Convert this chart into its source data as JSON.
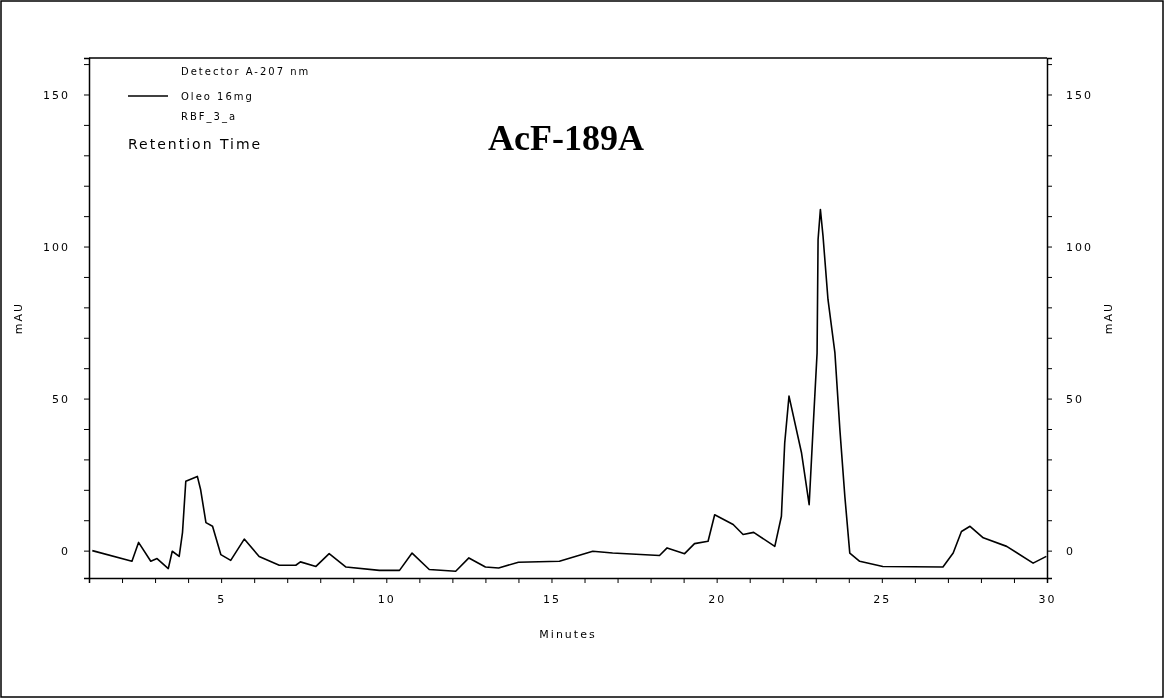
{
  "chart_data": {
    "type": "line",
    "title": "AcF-189A",
    "xlabel": "Minutes",
    "ylabel": "mAU",
    "y2label": "mAU",
    "legend": "top left",
    "grid": false,
    "marker": "none",
    "line_style": "solid",
    "annotations": [
      "Detector A-207 nm",
      "RBF_3_a",
      "Retention Time"
    ],
    "xlim": [
      1,
      30
    ],
    "xticks": [
      {
        "value": 1,
        "label": null
      },
      {
        "value": 2,
        "label": null
      },
      {
        "value": 3,
        "label": null
      },
      {
        "value": 4,
        "label": null
      },
      5,
      {
        "value": 6,
        "label": null
      },
      {
        "value": 7,
        "label": null
      },
      {
        "value": 8,
        "label": null
      },
      {
        "value": 9,
        "label": null
      },
      10,
      {
        "value": 11,
        "label": null
      },
      {
        "value": 12,
        "label": null
      },
      {
        "value": 13,
        "label": null
      },
      {
        "value": 14,
        "label": null
      },
      15,
      {
        "value": 16,
        "label": null
      },
      {
        "value": 17,
        "label": null
      },
      {
        "value": 18,
        "label": null
      },
      {
        "value": 19,
        "label": null
      },
      20,
      {
        "value": 21,
        "label": null
      },
      {
        "value": 22,
        "label": null
      },
      {
        "value": 23,
        "label": null
      },
      {
        "value": 24,
        "label": null
      },
      25,
      {
        "value": 26,
        "label": null
      },
      {
        "value": 27,
        "label": null
      },
      {
        "value": 28,
        "label": null
      },
      {
        "value": 29,
        "label": null
      },
      30
    ],
    "ylim": [
      -9,
      162
    ],
    "yticks": [
      0,
      {
        "value": 10,
        "label": null
      },
      {
        "value": 20,
        "label": null
      },
      {
        "value": 30,
        "label": null
      },
      {
        "value": 40,
        "label": null
      },
      50,
      {
        "value": 60,
        "label": null
      },
      {
        "value": 70,
        "label": null
      },
      {
        "value": 80,
        "label": null
      },
      {
        "value": 90,
        "label": null
      },
      100,
      {
        "value": 110,
        "label": null
      },
      {
        "value": 120,
        "label": null
      },
      {
        "value": 130,
        "label": null
      },
      {
        "value": 140,
        "label": null
      },
      150,
      {
        "value": 160,
        "label": null
      }
    ],
    "y2lim": [
      -9,
      162
    ],
    "y2ticks": [
      0,
      {
        "value": 10,
        "label": null
      },
      {
        "value": 20,
        "label": null
      },
      {
        "value": 30,
        "label": null
      },
      {
        "value": 40,
        "label": null
      },
      50,
      {
        "value": 60,
        "label": null
      },
      {
        "value": 70,
        "label": null
      },
      {
        "value": 80,
        "label": null
      },
      {
        "value": 90,
        "label": null
      },
      100,
      {
        "value": 110,
        "label": null
      },
      {
        "value": 120,
        "label": null
      },
      {
        "value": 130,
        "label": null
      },
      {
        "value": 140,
        "label": null
      },
      150,
      {
        "value": 160,
        "label": null
      }
    ],
    "series": [
      {
        "name": "Oleo 16mg",
        "color": "#000000",
        "x": [
          1.1,
          2.3,
          2.5,
          2.87,
          3.06,
          3.4,
          3.52,
          3.73,
          3.83,
          3.93,
          4.28,
          4.38,
          4.54,
          4.74,
          4.99,
          5.29,
          5.7,
          6.15,
          6.76,
          7.26,
          7.4,
          7.87,
          8.27,
          8.78,
          9.79,
          10.4,
          10.78,
          11.3,
          12.1,
          12.5,
          13.0,
          13.4,
          14.0,
          15.24,
          16.25,
          16.85,
          18.27,
          18.5,
          19.03,
          19.33,
          19.74,
          19.94,
          20.5,
          20.8,
          21.12,
          21.76,
          21.96,
          22.06,
          22.19,
          22.57,
          22.8,
          22.92,
          23.04,
          23.07,
          23.14,
          23.22,
          23.37,
          23.58,
          23.73,
          23.88,
          24.03,
          24.33,
          25.03,
          26.85,
          27.16,
          27.41,
          27.67,
          28.07,
          28.78,
          29.58,
          29.98
        ],
        "values": [
          0,
          -3.5,
          2.7,
          -3.5,
          -2.6,
          -5.9,
          -0.2,
          -1.9,
          5.9,
          22.8,
          24.4,
          20,
          9.2,
          8,
          -1.3,
          -3.2,
          3.8,
          -1.9,
          -4.8,
          -4.8,
          -3.7,
          -5.2,
          -1,
          -5.4,
          -6.5,
          -6.5,
          -0.8,
          -6.2,
          -6.8,
          -2.4,
          -5.4,
          -5.7,
          -3.8,
          -3.5,
          -0.2,
          -0.8,
          -1.6,
          0.9,
          -1,
          2.3,
          3.1,
          11.8,
          8.6,
          5.3,
          6,
          1.4,
          11.3,
          35.4,
          50.8,
          32.1,
          15.1,
          40.4,
          65,
          102.3,
          112.2,
          103.4,
          82.6,
          65,
          39.8,
          17.9,
          -0.8,
          -3.5,
          -5.2,
          -5.4,
          -0.8,
          6.3,
          8,
          4.2,
          1.4,
          -4.1,
          -1.9
        ]
      }
    ]
  }
}
